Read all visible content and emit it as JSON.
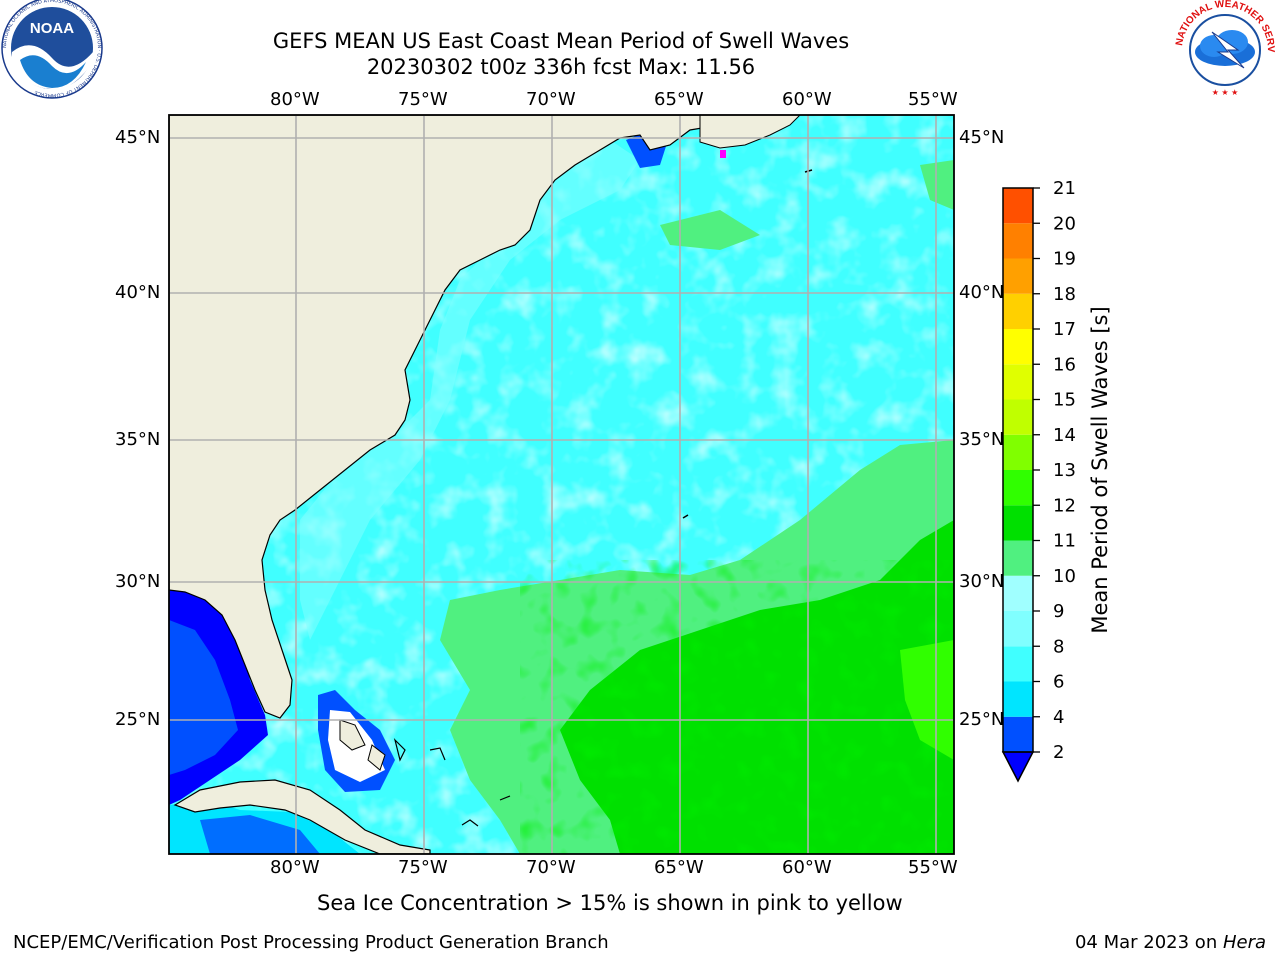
{
  "title": {
    "line1": "GEFS MEAN US East Coast Mean Period of Swell Waves",
    "line2": "20230302 t00z 336h fcst   Max: 11.56"
  },
  "logos": {
    "noaa_text": "NOAA",
    "noaa_ring_text": "NATIONAL OCEANIC AND ATMOSPHERIC ADMINISTRATION · U.S. DEPARTMENT OF COMMERCE",
    "nws_ring_text": "NATIONAL WEATHER SERVICE"
  },
  "map": {
    "lon_labels": [
      "80°W",
      "75°W",
      "70°W",
      "65°W",
      "60°W",
      "55°W"
    ],
    "lat_labels": [
      "45°N",
      "40°N",
      "35°N",
      "30°N",
      "25°N"
    ],
    "lon_range": [
      -85,
      -54.5
    ],
    "lat_range": [
      20.5,
      46
    ]
  },
  "colorbar": {
    "label": "Mean Period of Swell Waves [s]",
    "ticks": [
      "2",
      "4",
      "6",
      "8",
      "9",
      "10",
      "11",
      "12",
      "13",
      "14",
      "15",
      "16",
      "17",
      "18",
      "19",
      "20",
      "21"
    ],
    "colors": [
      "#0050ff",
      "#00e5ff",
      "#40ffff",
      "#80ffff",
      "#a0ffff",
      "#50f080",
      "#00e000",
      "#30ff00",
      "#80ff00",
      "#c0ff00",
      "#e0ff00",
      "#ffff00",
      "#ffd000",
      "#ffa000",
      "#ff8000",
      "#ff5000",
      "#ff2000",
      "#ff0000"
    ],
    "extend_color": "#0000ff"
  },
  "caption": "Sea Ice Concentration > 15% is shown in pink to yellow",
  "footer": {
    "left": "NCEP/EMC/Verification Post Processing Product Generation Branch",
    "date": "04 Mar 2023 on ",
    "machine": "Hera"
  }
}
